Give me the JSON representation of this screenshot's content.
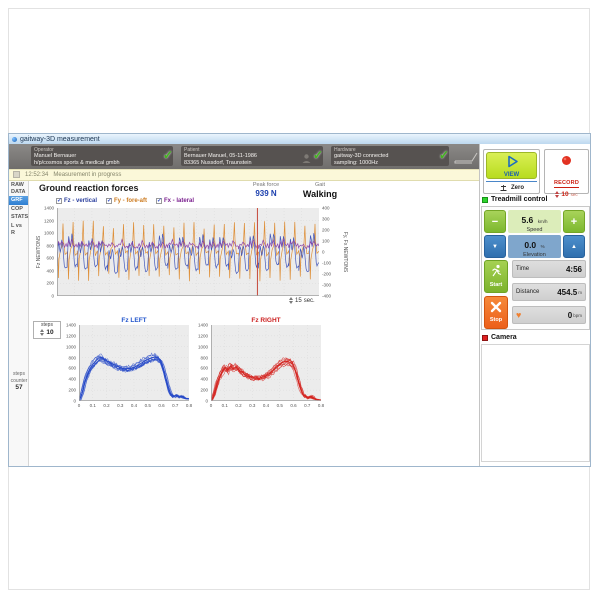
{
  "window": {
    "title": "gaitway-3D  measurement"
  },
  "header": {
    "operator": {
      "label": "Operator",
      "line1": "Manuel Bernauer",
      "line2": "h/p/cosmos sports & medical gmbh"
    },
    "patient": {
      "label": "Patient",
      "line1": "Bernauer Manuel, 05-11-1986",
      "line2": "83365 Nussdorf, Traunstein"
    },
    "hardware": {
      "label": "Hardware",
      "line1": "gaitway-3D connected",
      "line2": "sampling: 1000Hz"
    }
  },
  "statusbar": {
    "time": "12:52:34",
    "message": "Measurement in progress"
  },
  "sidebar": {
    "tabs": [
      {
        "label": "RAW DATA",
        "selected": false
      },
      {
        "label": "GRF",
        "selected": true
      },
      {
        "label": "COP",
        "selected": false
      },
      {
        "label": "STATS",
        "selected": false
      },
      {
        "label": "L vs R",
        "selected": false
      }
    ],
    "steps_counter_label": "steps counter",
    "steps_counter_value": "57"
  },
  "main": {
    "title": "Ground reaction forces",
    "peak_force_label": "Peak force",
    "peak_force_value": "939 N",
    "gait_label": "Gait",
    "gait_value": "Walking",
    "checkboxes": [
      {
        "label": "Fz - vertical",
        "color": "#2b3f9e",
        "checked": true
      },
      {
        "label": "Fy - fore-aft",
        "color": "#cc7a1e",
        "checked": true
      },
      {
        "label": "Fx - lateral",
        "color": "#7a1f8e",
        "checked": true
      }
    ],
    "steps_label": "steps",
    "steps_value": "10",
    "time_window": "15",
    "time_window_unit": "sec."
  },
  "chart_data": [
    {
      "id": "main_grf",
      "type": "line",
      "title": "",
      "left_axis": {
        "label": "Fz NEWTONS",
        "min": 0,
        "max": 1400,
        "ticks": [
          1400,
          1200,
          1000,
          800,
          600,
          400,
          200,
          0
        ]
      },
      "right_axis": {
        "label": "Fy, Fx NEWTONS",
        "min": -400,
        "max": 400,
        "ticks": [
          400,
          300,
          200,
          100,
          0,
          -100,
          -200,
          -300,
          -400
        ]
      },
      "x_axis": {
        "duration_sec": 15
      },
      "cursor_frac": 0.765,
      "cycles": 26,
      "series": [
        {
          "name": "Fy - fore-aft",
          "axis": "right",
          "color": "#dd8a2e",
          "cycle": [
            [
              0,
              0
            ],
            [
              0.08,
              -40
            ],
            [
              0.14,
              -230
            ],
            [
              0.2,
              -60
            ],
            [
              0.35,
              20
            ],
            [
              0.5,
              60
            ],
            [
              0.6,
              250
            ],
            [
              0.66,
              90
            ],
            [
              0.8,
              -20
            ],
            [
              1,
              0
            ]
          ]
        },
        {
          "name": "Fz - vertical",
          "axis": "left",
          "color": "#3a50b8",
          "cycle": [
            [
              0,
              470
            ],
            [
              0.08,
              700
            ],
            [
              0.16,
              860
            ],
            [
              0.24,
              790
            ],
            [
              0.32,
              700
            ],
            [
              0.4,
              760
            ],
            [
              0.48,
              870
            ],
            [
              0.56,
              820
            ],
            [
              0.64,
              640
            ],
            [
              0.72,
              480
            ],
            [
              0.8,
              430
            ],
            [
              0.9,
              450
            ],
            [
              1,
              470
            ]
          ]
        },
        {
          "name": "Fx - lateral",
          "axis": "right",
          "color": "#8a3fa8",
          "cycle": [
            [
              0,
              40
            ],
            [
              0.15,
              80
            ],
            [
              0.3,
              55
            ],
            [
              0.45,
              95
            ],
            [
              0.6,
              70
            ],
            [
              0.75,
              45
            ],
            [
              0.9,
              60
            ],
            [
              1,
              40
            ]
          ]
        }
      ]
    },
    {
      "id": "fz_left",
      "type": "line",
      "title": "Fz LEFT",
      "title_color": "#2255cc",
      "color": "#2548c8",
      "n_traces": 10,
      "y_axis": {
        "min": 0,
        "max": 1400,
        "ticks": [
          1400,
          1200,
          1000,
          800,
          600,
          400,
          200,
          0
        ]
      },
      "x_axis": {
        "min": 0,
        "max": 0.8,
        "ticks": [
          0,
          0.1,
          0.2,
          0.3,
          0.4,
          0.5,
          0.6,
          0.7,
          0.8
        ]
      },
      "mean_curve": [
        [
          0,
          5
        ],
        [
          0.02,
          120
        ],
        [
          0.05,
          420
        ],
        [
          0.08,
          600
        ],
        [
          0.11,
          700
        ],
        [
          0.14,
          790
        ],
        [
          0.16,
          810
        ],
        [
          0.19,
          760
        ],
        [
          0.23,
          700
        ],
        [
          0.28,
          635
        ],
        [
          0.33,
          595
        ],
        [
          0.38,
          600
        ],
        [
          0.43,
          660
        ],
        [
          0.48,
          740
        ],
        [
          0.53,
          800
        ],
        [
          0.56,
          815
        ],
        [
          0.59,
          770
        ],
        [
          0.61,
          650
        ],
        [
          0.63,
          450
        ],
        [
          0.65,
          250
        ],
        [
          0.67,
          120
        ],
        [
          0.69,
          80
        ],
        [
          0.71,
          110
        ],
        [
          0.73,
          70
        ],
        [
          0.75,
          90
        ],
        [
          0.77,
          50
        ],
        [
          0.8,
          40
        ]
      ]
    },
    {
      "id": "fz_right",
      "type": "line",
      "title": "Fz RIGHT",
      "title_color": "#cc2222",
      "color": "#d42420",
      "n_traces": 10,
      "y_axis": {
        "min": 0,
        "max": 1400,
        "ticks": [
          1400,
          1200,
          1000,
          800,
          600,
          400,
          200,
          0
        ]
      },
      "x_axis": {
        "min": 0,
        "max": 0.8,
        "ticks": [
          0,
          0.1,
          0.2,
          0.3,
          0.4,
          0.5,
          0.6,
          0.7,
          0.8
        ]
      },
      "mean_curve": [
        [
          0,
          5
        ],
        [
          0.02,
          100
        ],
        [
          0.05,
          380
        ],
        [
          0.08,
          540
        ],
        [
          0.1,
          620
        ],
        [
          0.12,
          560
        ],
        [
          0.14,
          650
        ],
        [
          0.16,
          590
        ],
        [
          0.18,
          630
        ],
        [
          0.21,
          560
        ],
        [
          0.25,
          480
        ],
        [
          0.3,
          425
        ],
        [
          0.35,
          415
        ],
        [
          0.4,
          460
        ],
        [
          0.45,
          560
        ],
        [
          0.5,
          680
        ],
        [
          0.53,
          720
        ],
        [
          0.56,
          730
        ],
        [
          0.59,
          690
        ],
        [
          0.61,
          590
        ],
        [
          0.63,
          420
        ],
        [
          0.65,
          240
        ],
        [
          0.67,
          110
        ],
        [
          0.7,
          60
        ],
        [
          0.73,
          80
        ],
        [
          0.76,
          30
        ],
        [
          0.8,
          15
        ]
      ]
    }
  ],
  "right_panel": {
    "view_label": "VIEW",
    "zero_label": "Zero",
    "record_label": "RECORD",
    "record_duration": "10",
    "record_unit": "sec",
    "treadmill": {
      "title": "Treadmill control",
      "speed_value": "5.6",
      "speed_unit": "km/h",
      "speed_label": "Speed",
      "elevation_value": "0.0",
      "elevation_unit": "%",
      "elevation_label": "Elevation",
      "start_label": "Start",
      "stop_label": "Stop",
      "time_label": "Time",
      "time_value": "4:56",
      "distance_label": "Distance",
      "distance_value": "454.5",
      "distance_unit": "m",
      "bpm_value": "0",
      "bpm_unit": "bpm"
    },
    "camera": {
      "title": "Camera"
    }
  }
}
